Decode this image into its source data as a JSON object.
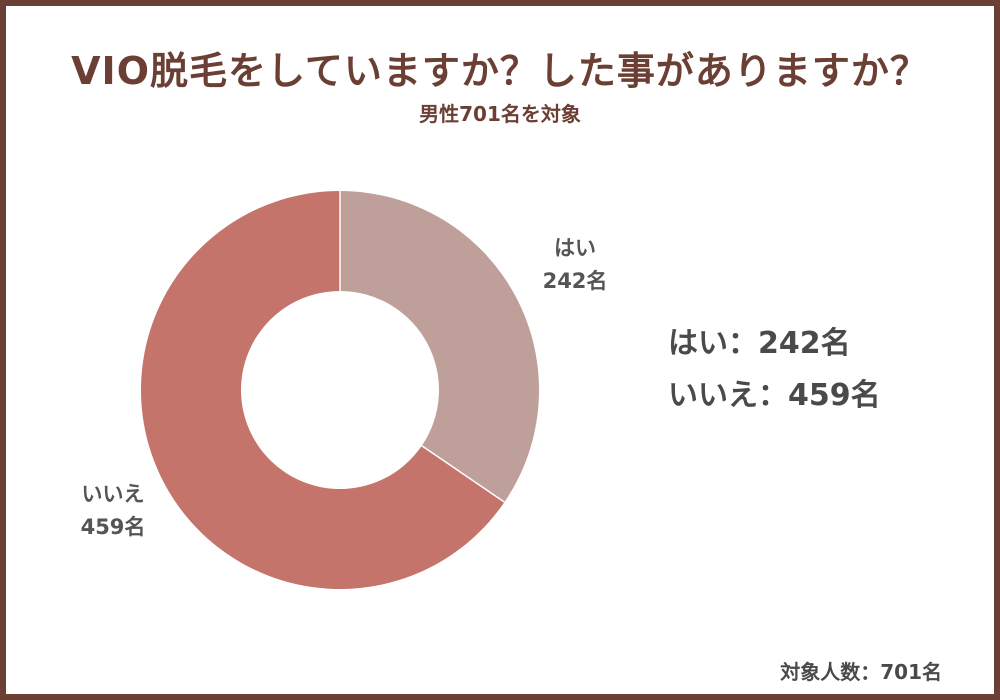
{
  "header": {
    "title": "VIO脱毛をしていますか？した事がありますか？",
    "subtitle": "男性701名を対象"
  },
  "slice_labels": {
    "yes": {
      "name": "はい",
      "count": "242名"
    },
    "no": {
      "name": "いいえ",
      "count": "459名"
    }
  },
  "legend": {
    "yes_line": "はい：242名",
    "no_line": "いいえ：459名"
  },
  "footer": {
    "total": "対象人数：701名"
  },
  "chart_data": {
    "type": "pie",
    "variant": "donut",
    "title": "VIO脱毛をしていますか？した事がありますか？",
    "subtitle": "男性701名を対象",
    "total": 701,
    "slices": [
      {
        "label": "はい",
        "value": 242,
        "color": "#bf9f99"
      },
      {
        "label": "いいえ",
        "value": 459,
        "color": "#c4746a"
      }
    ]
  },
  "colors": {
    "frame": "#6b3f33",
    "title": "#6b3f33",
    "text": "#4a4a4a"
  }
}
